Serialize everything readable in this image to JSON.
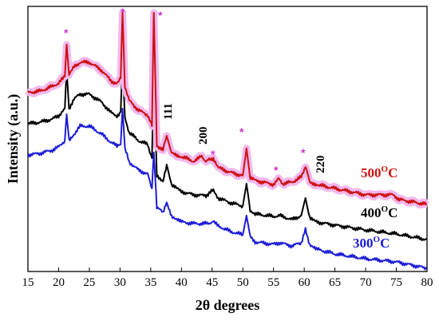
{
  "chart_data": {
    "type": "line",
    "title": "",
    "xlabel": "2θ degrees",
    "ylabel": "Intensity (a.u.)",
    "xlim": [
      15,
      80
    ],
    "xticks": [
      "15",
      "20",
      "25",
      "30",
      "35",
      "40",
      "45",
      "50",
      "55",
      "60",
      "65",
      "70",
      "75",
      "80"
    ],
    "yticks_shown": false,
    "grid": false,
    "series": [
      {
        "name": "300⁰C",
        "label_main": "300",
        "label_sup": "O",
        "label_unit": "C",
        "color": "#1c1cd6",
        "halo": null,
        "x": [
          15,
          17,
          19,
          20,
          21,
          21.3,
          21.7,
          22.5,
          23.5,
          25,
          27,
          28.5,
          29.5,
          30.1,
          30.4,
          30.8,
          31.5,
          33,
          34.5,
          35.2,
          35.5,
          36,
          37,
          37.6,
          38.4,
          40,
          42,
          44,
          45.2,
          46,
          48,
          50,
          50.6,
          51.2,
          52,
          55,
          56,
          58,
          59.5,
          60.2,
          60.9,
          62,
          65,
          70,
          75,
          80
        ],
        "y": [
          186,
          184,
          180,
          176,
          168,
          135,
          168,
          160,
          150,
          150,
          160,
          170,
          175,
          173,
          128,
          178,
          195,
          205,
          210,
          228,
          183,
          252,
          258,
          246,
          262,
          270,
          272,
          272,
          270,
          275,
          282,
          286,
          262,
          288,
          295,
          298,
          296,
          300,
          296,
          280,
          298,
          304,
          310,
          316,
          320,
          328
        ]
      },
      {
        "name": "400⁰C",
        "label_main": "400",
        "label_sup": "O",
        "label_unit": "C",
        "color": "#000000",
        "halo": null,
        "x": [
          15,
          17,
          19,
          20,
          21,
          21.3,
          21.7,
          22.5,
          23.5,
          25,
          27,
          28.5,
          29.5,
          30.1,
          30.4,
          30.8,
          31.5,
          33,
          34.5,
          35.2,
          35.5,
          36,
          37,
          37.6,
          38.4,
          40,
          42,
          44,
          45.2,
          46,
          48,
          50,
          50.6,
          51.2,
          52,
          55,
          56,
          58,
          59.5,
          60.2,
          60.9,
          62,
          65,
          70,
          75,
          80
        ],
        "y": [
          147,
          145,
          141,
          137,
          128,
          80,
          128,
          116,
          110,
          110,
          120,
          133,
          137,
          132,
          70,
          140,
          158,
          168,
          173,
          190,
          85,
          213,
          218,
          198,
          224,
          232,
          236,
          237,
          230,
          240,
          246,
          250,
          222,
          255,
          260,
          263,
          262,
          267,
          262,
          240,
          266,
          270,
          274,
          280,
          285,
          292
        ]
      },
      {
        "name": "500⁰C",
        "label_main": "500",
        "label_sup": "O",
        "label_unit": "C",
        "color": "#cc1111",
        "halo": "#f2b8ee",
        "x": [
          15,
          17,
          19,
          20,
          21,
          21.3,
          21.7,
          22.5,
          23.5,
          25,
          27,
          28.5,
          29.5,
          30.1,
          30.4,
          30.8,
          31.5,
          33,
          34.5,
          35.2,
          35.5,
          36,
          37,
          37.6,
          38.4,
          40,
          42,
          43.3,
          44,
          45.2,
          46,
          48,
          50,
          50.6,
          51.2,
          52,
          55,
          55.8,
          56.5,
          58,
          59.5,
          60.2,
          60.9,
          62.5,
          65,
          70,
          74.5,
          75.5,
          80
        ],
        "y": [
          108,
          106,
          100,
          96,
          88,
          48,
          86,
          76,
          70,
          70,
          80,
          93,
          97,
          90,
          8,
          100,
          118,
          130,
          136,
          150,
          8,
          174,
          180,
          162,
          184,
          188,
          194,
          188,
          194,
          190,
          202,
          208,
          212,
          178,
          215,
          218,
          223,
          216,
          222,
          220,
          214,
          200,
          220,
          224,
          228,
          236,
          236,
          242,
          248
        ]
      }
    ],
    "peak_labels": [
      "111",
      "200",
      "220"
    ],
    "marker_symbol": "*"
  }
}
